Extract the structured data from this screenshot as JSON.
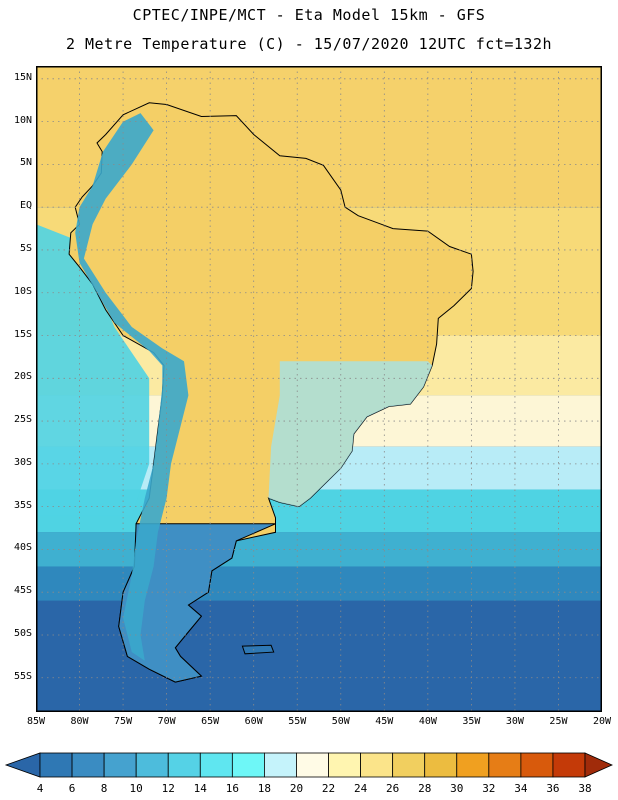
{
  "title": {
    "line1": "CPTEC/INPE/MCT -  Eta Model 15km - GFS",
    "line2": "2 Metre Temperature (C) - 15/07/2020 12UTC fct=132h"
  },
  "map": {
    "extent": {
      "lon_min": -85,
      "lon_max": -20,
      "lat_min": -59,
      "lat_max": 16.5
    },
    "ocean_color": "#26639e",
    "grid": true,
    "lat_ticks": [
      {
        "value": 15,
        "label": "15N"
      },
      {
        "value": 10,
        "label": "10N"
      },
      {
        "value": 5,
        "label": "5N"
      },
      {
        "value": 0,
        "label": "EQ"
      },
      {
        "value": -5,
        "label": "5S"
      },
      {
        "value": -10,
        "label": "10S"
      },
      {
        "value": -15,
        "label": "15S"
      },
      {
        "value": -20,
        "label": "20S"
      },
      {
        "value": -25,
        "label": "25S"
      },
      {
        "value": -30,
        "label": "30S"
      },
      {
        "value": -35,
        "label": "35S"
      },
      {
        "value": -40,
        "label": "40S"
      },
      {
        "value": -45,
        "label": "45S"
      },
      {
        "value": -50,
        "label": "50S"
      },
      {
        "value": -55,
        "label": "55S"
      }
    ],
    "lon_ticks": [
      {
        "value": -85,
        "label": "85W"
      },
      {
        "value": -80,
        "label": "80W"
      },
      {
        "value": -75,
        "label": "75W"
      },
      {
        "value": -70,
        "label": "70W"
      },
      {
        "value": -65,
        "label": "65W"
      },
      {
        "value": -60,
        "label": "60W"
      },
      {
        "value": -55,
        "label": "55W"
      },
      {
        "value": -50,
        "label": "50W"
      },
      {
        "value": -45,
        "label": "45W"
      },
      {
        "value": -40,
        "label": "40W"
      },
      {
        "value": -35,
        "label": "35W"
      },
      {
        "value": -30,
        "label": "30W"
      },
      {
        "value": -25,
        "label": "25W"
      },
      {
        "value": -20,
        "label": "20W"
      }
    ],
    "temperature_bands": [
      {
        "lat_north": 16.5,
        "lat_south": 0,
        "color": "#f5d16b"
      },
      {
        "lat_north": 0,
        "lat_south": -15,
        "color": "#f7da78"
      },
      {
        "lat_north": -15,
        "lat_south": -22,
        "color": "#fbeaa2"
      },
      {
        "lat_north": -22,
        "lat_south": -28,
        "color": "#fdf6d6"
      },
      {
        "lat_north": -28,
        "lat_south": -33,
        "color": "#b8ecf7"
      },
      {
        "lat_north": -33,
        "lat_south": -38,
        "color": "#4fd3e3"
      },
      {
        "lat_north": -38,
        "lat_south": -42,
        "color": "#3fb0d0"
      },
      {
        "lat_north": -42,
        "lat_south": -46,
        "color": "#2f88bd"
      },
      {
        "lat_north": -46,
        "lat_south": -59,
        "color": "#2a66a8"
      }
    ],
    "pacific_band": {
      "color": "#4fd3e3"
    },
    "land_color": "#f4cf66",
    "andes_color": "#3aa7cc",
    "continent": [
      [
        -77,
        8.5
      ],
      [
        -75,
        10.8
      ],
      [
        -72,
        12.2
      ],
      [
        -70,
        12.0
      ],
      [
        -66,
        10.6
      ],
      [
        -62,
        10.7
      ],
      [
        -60,
        8.5
      ],
      [
        -57,
        6.0
      ],
      [
        -54,
        5.7
      ],
      [
        -52,
        4.9
      ],
      [
        -50,
        2.0
      ],
      [
        -49.5,
        0
      ],
      [
        -48,
        -1.0
      ],
      [
        -44,
        -2.5
      ],
      [
        -40,
        -2.8
      ],
      [
        -37.5,
        -4.6
      ],
      [
        -35,
        -5.5
      ],
      [
        -34.8,
        -7.5
      ],
      [
        -35,
        -9.5
      ],
      [
        -37,
        -11.5
      ],
      [
        -38.8,
        -13
      ],
      [
        -39,
        -16
      ],
      [
        -39.5,
        -18.5
      ],
      [
        -40.5,
        -21
      ],
      [
        -42,
        -23
      ],
      [
        -44.5,
        -23.3
      ],
      [
        -47,
        -24.5
      ],
      [
        -48.5,
        -26.5
      ],
      [
        -48.7,
        -28.5
      ],
      [
        -50,
        -30.5
      ],
      [
        -51.5,
        -32
      ],
      [
        -53.5,
        -34
      ],
      [
        -54.8,
        -35
      ],
      [
        -57,
        -34.5
      ],
      [
        -58.3,
        -34
      ],
      [
        -57.5,
        -36.3
      ],
      [
        -57.5,
        -38
      ],
      [
        -62,
        -39
      ],
      [
        -62.5,
        -41
      ],
      [
        -64.8,
        -42.5
      ],
      [
        -65.2,
        -45
      ],
      [
        -67.5,
        -46.5
      ],
      [
        -66,
        -47.8
      ],
      [
        -67.8,
        -50
      ],
      [
        -69,
        -51.5
      ],
      [
        -68.4,
        -52.5
      ],
      [
        -66,
        -54.8
      ],
      [
        -69,
        -55.5
      ],
      [
        -72,
        -54
      ],
      [
        -74.5,
        -52.5
      ],
      [
        -75.5,
        -49
      ],
      [
        -75,
        -45
      ],
      [
        -73.7,
        -42
      ],
      [
        -73.5,
        -39
      ],
      [
        -73.5,
        -37
      ],
      [
        -72,
        -34
      ],
      [
        -71.5,
        -30
      ],
      [
        -71,
        -26
      ],
      [
        -70.5,
        -22
      ],
      [
        -70.3,
        -18.5
      ],
      [
        -71.5,
        -17
      ],
      [
        -75,
        -15
      ],
      [
        -77,
        -12
      ],
      [
        -78.5,
        -9
      ],
      [
        -80,
        -7
      ],
      [
        -81.2,
        -5.5
      ],
      [
        -81,
        -3
      ],
      [
        -80,
        -2
      ],
      [
        -80.5,
        0
      ],
      [
        -79.7,
        1.2
      ],
      [
        -78.5,
        2.5
      ],
      [
        -77.5,
        4
      ],
      [
        -77.4,
        6.5
      ],
      [
        -78,
        7.5
      ]
    ],
    "andes_strip": [
      [
        -73,
        11
      ],
      [
        -71.5,
        9
      ],
      [
        -74,
        5
      ],
      [
        -77,
        1
      ],
      [
        -78.5,
        -2
      ],
      [
        -79.5,
        -6
      ],
      [
        -77,
        -10
      ],
      [
        -74,
        -14
      ],
      [
        -70.5,
        -16.5
      ],
      [
        -68,
        -18
      ],
      [
        -67.5,
        -22
      ],
      [
        -68.5,
        -26
      ],
      [
        -69.5,
        -30
      ],
      [
        -70,
        -34
      ],
      [
        -71,
        -38
      ],
      [
        -71.5,
        -42
      ],
      [
        -72.5,
        -46
      ],
      [
        -73,
        -50
      ],
      [
        -72.5,
        -53
      ],
      [
        -74,
        -52
      ],
      [
        -75,
        -48
      ],
      [
        -74,
        -43
      ],
      [
        -73.5,
        -39
      ],
      [
        -72.5,
        -34
      ],
      [
        -71.5,
        -30
      ],
      [
        -71,
        -26
      ],
      [
        -70.5,
        -21
      ],
      [
        -70.5,
        -18.5
      ],
      [
        -72,
        -16.8
      ],
      [
        -76,
        -13.5
      ],
      [
        -78,
        -10
      ],
      [
        -80,
        -6.5
      ],
      [
        -80.5,
        -3
      ],
      [
        -80,
        0
      ],
      [
        -78.5,
        2.5
      ],
      [
        -77.3,
        6.5
      ],
      [
        -75,
        10
      ]
    ],
    "falklands": [
      [
        -61.3,
        -51.3
      ],
      [
        -58,
        -51.2
      ],
      [
        -57.7,
        -52
      ],
      [
        -61,
        -52.2
      ]
    ]
  },
  "colorbar": {
    "labels": [
      "4",
      "6",
      "8",
      "10",
      "12",
      "14",
      "16",
      "18",
      "20",
      "22",
      "24",
      "26",
      "28",
      "30",
      "32",
      "34",
      "36",
      "38"
    ],
    "colors": [
      "#2a66a8",
      "#2f78b4",
      "#3a8cc2",
      "#45a2cf",
      "#4dbcdc",
      "#55d2e6",
      "#5fe6f0",
      "#6ef7f7",
      "#c5f3fb",
      "#fffbe6",
      "#fff5b0",
      "#fbe48a",
      "#f1cf5f",
      "#ecbc40",
      "#f0a020",
      "#e67d16",
      "#d85a0c",
      "#c43a08",
      "#a02b0a"
    ]
  }
}
